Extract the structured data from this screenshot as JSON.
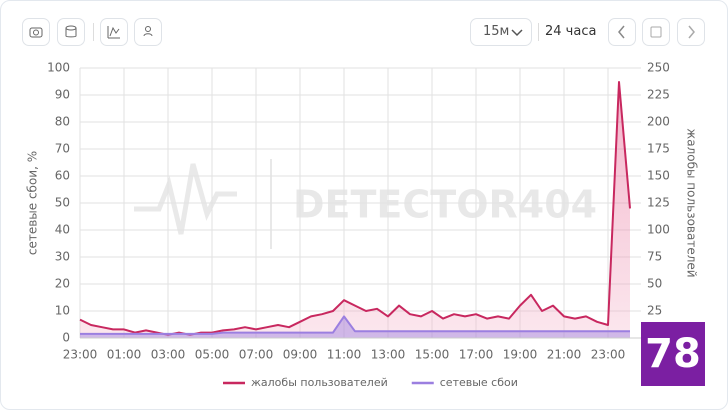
{
  "toolbar": {
    "interval": "15м",
    "range": "24 часа"
  },
  "watermark": "DETECTOR404",
  "badge": "78",
  "chart_data": {
    "type": "line",
    "y_label": "сетевые сбои, %",
    "y2_label": "жалобы пользователей",
    "x": [
      0,
      0.5,
      1,
      1.5,
      2,
      2.5,
      3,
      3.5,
      4,
      4.5,
      5,
      5.5,
      6,
      6.5,
      7,
      7.5,
      8,
      8.5,
      9,
      9.5,
      10,
      10.5,
      11,
      11.5,
      12,
      12.5,
      13,
      13.5,
      14,
      14.5,
      15,
      15.5,
      16,
      16.5,
      17,
      17.5,
      18,
      18.5,
      19,
      19.5,
      20,
      20.5,
      21,
      21.5,
      22,
      22.5,
      23,
      23.5,
      24,
      24.5,
      25
    ],
    "xlim": [
      0,
      25.5
    ],
    "xticks": [
      {
        "value": 0,
        "label": "23:00"
      },
      {
        "value": 2,
        "label": "01:00"
      },
      {
        "value": 4,
        "label": "03:00"
      },
      {
        "value": 6,
        "label": "05:00"
      },
      {
        "value": 8,
        "label": "07:00"
      },
      {
        "value": 10,
        "label": "09:00"
      },
      {
        "value": 12,
        "label": "11:00"
      },
      {
        "value": 14,
        "label": "13:00"
      },
      {
        "value": 16,
        "label": "15:00"
      },
      {
        "value": 18,
        "label": "17:00"
      },
      {
        "value": 20,
        "label": "19:00"
      },
      {
        "value": 22,
        "label": "21:00"
      },
      {
        "value": 24,
        "label": "23:00"
      }
    ],
    "ylim": [
      0,
      100
    ],
    "yticks": [
      0,
      10,
      20,
      30,
      40,
      50,
      60,
      70,
      80,
      90,
      100
    ],
    "y2lim": [
      0,
      250
    ],
    "y2ticks": [
      25,
      50,
      75,
      100,
      125,
      150,
      175,
      200,
      225,
      250
    ],
    "grid": true,
    "legend": "bottom",
    "series": [
      {
        "name": "жалобы пользователей",
        "color": "#c8285f",
        "axis": "y2",
        "values": [
          17,
          12,
          10,
          8,
          8,
          5,
          7,
          5,
          3,
          5,
          3,
          5,
          5,
          7,
          8,
          10,
          8,
          10,
          12,
          10,
          15,
          20,
          22,
          25,
          35,
          30,
          25,
          27,
          20,
          30,
          22,
          20,
          25,
          18,
          22,
          20,
          22,
          18,
          20,
          18,
          30,
          40,
          25,
          30,
          20,
          18,
          20,
          15,
          12,
          237,
          120
        ]
      },
      {
        "name": "сетевые сбои",
        "color": "#9b7fe0",
        "values": [
          1.5,
          1.5,
          1.5,
          1.5,
          1.5,
          1.5,
          1.5,
          1.5,
          1.5,
          1.5,
          1.5,
          1.5,
          1.5,
          2,
          2,
          2,
          2,
          2,
          2,
          2,
          2,
          2,
          2,
          2,
          8,
          2.5,
          2.5,
          2.5,
          2.5,
          2.5,
          2.5,
          2.5,
          2.5,
          2.5,
          2.5,
          2.5,
          2.5,
          2.5,
          2.5,
          2.5,
          2.5,
          2.5,
          2.5,
          2.5,
          2.5,
          2.5,
          2.5,
          2.5,
          2.5,
          2.5,
          2.5
        ]
      }
    ]
  }
}
